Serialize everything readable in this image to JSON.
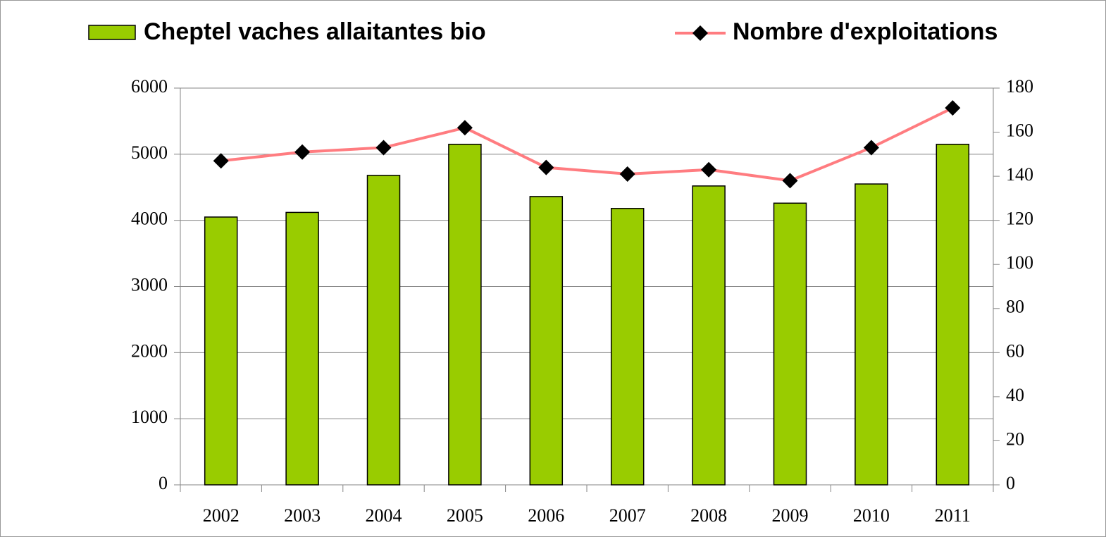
{
  "chart_data": {
    "type": "bar",
    "categories": [
      "2002",
      "2003",
      "2004",
      "2005",
      "2006",
      "2007",
      "2008",
      "2009",
      "2010",
      "2011"
    ],
    "series": [
      {
        "name": "Cheptel vaches allaitantes bio",
        "type": "bar",
        "color": "#99cc00",
        "values": [
          4050,
          4120,
          4680,
          5150,
          4360,
          4180,
          4520,
          4260,
          4550,
          5150
        ]
      },
      {
        "name": "Nombre d'exploitations",
        "type": "line",
        "axis": "y2",
        "color": "#ff7c80",
        "marker_color": "#000000",
        "values": [
          147,
          151,
          153,
          162,
          144,
          141,
          143,
          138,
          153,
          171
        ]
      }
    ],
    "ylim": [
      0,
      6000
    ],
    "yticks": [
      0,
      1000,
      2000,
      3000,
      4000,
      5000,
      6000
    ],
    "y2lim": [
      0,
      180
    ],
    "y2ticks": [
      0,
      20,
      40,
      60,
      80,
      100,
      120,
      140,
      160,
      180
    ],
    "grid": true,
    "legend": "top"
  }
}
